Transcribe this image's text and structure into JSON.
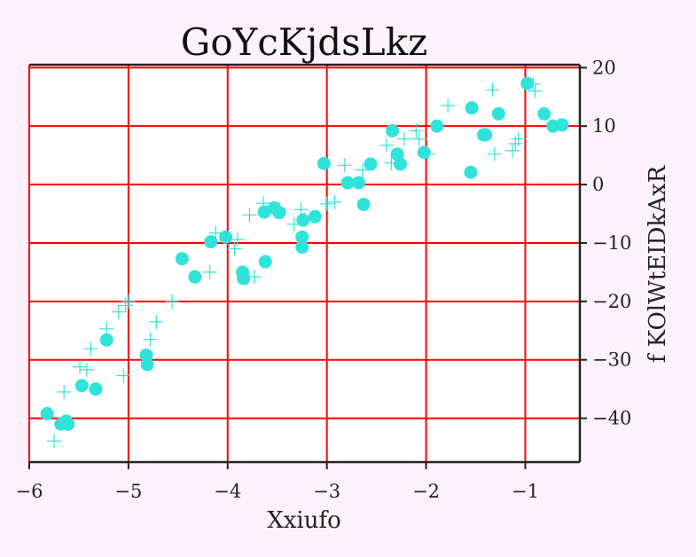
{
  "chart_data": {
    "type": "scatter",
    "title": "GoYcKjdsLkz",
    "xlabel": "Xxiufo",
    "ylabel": "f KOlWtEIDkAxR",
    "xlim": [
      -6.0,
      -0.45
    ],
    "ylim": [
      -47.5,
      20.5
    ],
    "x_ticks": [
      -6,
      -5,
      -4,
      -3,
      -2,
      -1
    ],
    "x_tick_labels": [
      "−6",
      "−5",
      "−4",
      "−3",
      "−2",
      "−1"
    ],
    "y_ticks": [
      20,
      10,
      0,
      -10,
      -20,
      -30,
      -40
    ],
    "y_tick_labels": [
      "20",
      "10",
      "0",
      "−10",
      "−20",
      "−30",
      "−40"
    ],
    "y_axis_side": "right",
    "grid": true,
    "colors": {
      "grid": "#ff0000",
      "marker": "#30e3da",
      "background": "#fdf2fb",
      "plot_area": "#ffffff",
      "axis": "#222222"
    },
    "series": [
      {
        "marker": "circle",
        "points": [
          [
            -5.82,
            -39.2
          ],
          [
            -5.68,
            -41.0
          ],
          [
            -5.63,
            -40.5
          ],
          [
            -5.61,
            -41.0
          ],
          [
            -5.47,
            -34.4
          ],
          [
            -5.33,
            -35.0
          ],
          [
            -5.22,
            -26.6
          ],
          [
            -4.82,
            -29.2
          ],
          [
            -4.81,
            -30.8
          ],
          [
            -4.46,
            -12.7
          ],
          [
            -4.33,
            -15.8
          ],
          [
            -4.17,
            -9.8
          ],
          [
            -4.02,
            -9.0
          ],
          [
            -3.85,
            -15.0
          ],
          [
            -3.84,
            -16.1
          ],
          [
            -3.62,
            -13.2
          ],
          [
            -3.63,
            -4.7
          ],
          [
            -3.53,
            -4.0
          ],
          [
            -3.48,
            -4.8
          ],
          [
            -3.25,
            -10.7
          ],
          [
            -3.25,
            -9.0
          ],
          [
            -3.24,
            -6.1
          ],
          [
            -3.12,
            -5.5
          ],
          [
            -3.03,
            3.6
          ],
          [
            -2.79,
            0.3
          ],
          [
            -2.68,
            0.3
          ],
          [
            -2.63,
            -3.4
          ],
          [
            -2.56,
            3.5
          ],
          [
            -2.34,
            9.2
          ],
          [
            -2.29,
            5.2
          ],
          [
            -2.26,
            3.5
          ],
          [
            -2.02,
            5.5
          ],
          [
            -1.89,
            10.0
          ],
          [
            -1.55,
            2.1
          ],
          [
            -1.54,
            13.1
          ],
          [
            -1.42,
            8.5
          ],
          [
            -1.4,
            8.5
          ],
          [
            -1.27,
            12.1
          ],
          [
            -0.98,
            17.3
          ],
          [
            -0.81,
            12.1
          ],
          [
            -0.72,
            10.0
          ],
          [
            -0.63,
            10.2
          ]
        ]
      },
      {
        "marker": "plus",
        "points": [
          [
            -5.75,
            -43.9
          ],
          [
            -5.65,
            -35.5
          ],
          [
            -5.49,
            -31.2
          ],
          [
            -5.42,
            -31.7
          ],
          [
            -5.38,
            -28.1
          ],
          [
            -5.22,
            -24.7
          ],
          [
            -5.1,
            -21.8
          ],
          [
            -5.03,
            -20.7
          ],
          [
            -5.0,
            -20.0
          ],
          [
            -5.05,
            -32.7
          ],
          [
            -4.78,
            -26.5
          ],
          [
            -4.72,
            -23.5
          ],
          [
            -4.56,
            -20.0
          ],
          [
            -4.18,
            -15.0
          ],
          [
            -4.12,
            -8.3
          ],
          [
            -3.93,
            -11.0
          ],
          [
            -3.9,
            -9.4
          ],
          [
            -3.78,
            -5.2
          ],
          [
            -3.73,
            -15.8
          ],
          [
            -3.64,
            -3.2
          ],
          [
            -3.48,
            -4.2
          ],
          [
            -3.33,
            -6.8
          ],
          [
            -3.26,
            -4.3
          ],
          [
            -3.22,
            -6.0
          ],
          [
            -3.0,
            -3.3
          ],
          [
            -2.92,
            -3.0
          ],
          [
            -2.82,
            3.3
          ],
          [
            -2.64,
            2.5
          ],
          [
            -2.4,
            6.7
          ],
          [
            -2.35,
            3.7
          ],
          [
            -2.22,
            7.8
          ],
          [
            -2.1,
            9.2
          ],
          [
            -2.07,
            7.8
          ],
          [
            -1.98,
            5.2
          ],
          [
            -1.78,
            13.5
          ],
          [
            -1.33,
            16.2
          ],
          [
            -1.31,
            5.2
          ],
          [
            -1.13,
            5.8
          ],
          [
            -1.1,
            7.0
          ],
          [
            -1.07,
            7.8
          ],
          [
            -0.92,
            17.2
          ],
          [
            -0.9,
            16.0
          ]
        ]
      }
    ]
  }
}
